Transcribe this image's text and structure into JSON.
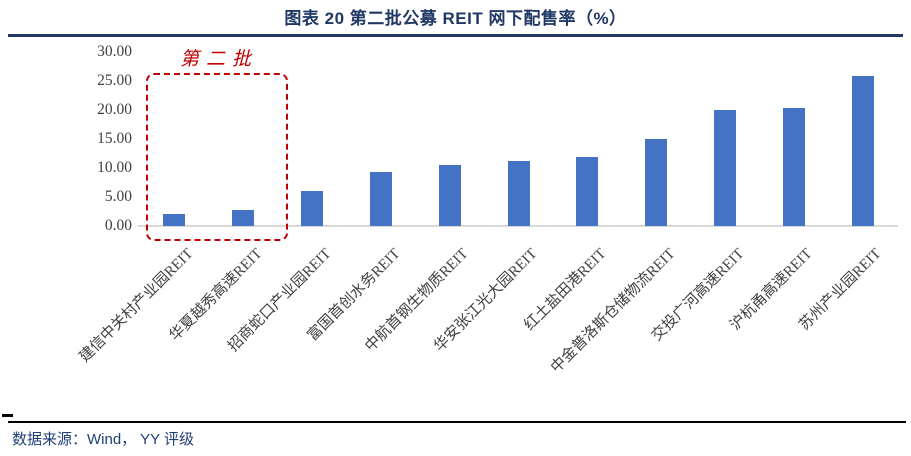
{
  "header": {
    "title": "图表 20 第二批公募 REIT 网下配售率（%）"
  },
  "annotation": {
    "label": "第二批"
  },
  "footer": {
    "source": "数据来源：Wind， YY 评级"
  },
  "colors": {
    "bar_blue": "#4472C4",
    "title_navy": "#1F3864",
    "annotation_red": "#C00000",
    "axis_line_gray": "#D9D9D9",
    "tick_text_gray": "#404040",
    "footer_text_blue": "#1F3E79"
  },
  "chart_data": {
    "type": "bar",
    "title": "图表 20 第二批公募 REIT 网下配售率（%）",
    "categories": [
      "建信中关村产业园REIT",
      "华夏越秀高速REIT",
      "招商蛇口产业园REIT",
      "富国首创水务REIT",
      "中航首钢生物质REIT",
      "华安张江光大园REIT",
      "红土盐田港REIT",
      "中金普洛斯仓储物流REIT",
      "交投广河高速REIT",
      "沪杭甬高速REIT",
      "苏州产业园REIT"
    ],
    "values": [
      2.0,
      2.8,
      6.0,
      9.3,
      10.6,
      11.2,
      11.9,
      15.0,
      20.0,
      20.4,
      25.9
    ],
    "xlabel": "",
    "ylabel": "",
    "ylim": [
      0,
      30
    ],
    "yticks": [
      0,
      5,
      10,
      15,
      20,
      25,
      30
    ],
    "ytick_labels": [
      "0.00",
      "5.00",
      "10.00",
      "15.00",
      "20.00",
      "25.00",
      "30.00"
    ],
    "grid": false,
    "legend": null,
    "bar_color": "#4472C4",
    "annotation": {
      "text": "第二批",
      "style": "red-dashed-box",
      "covers_categories": [
        "建信中关村产业园REIT",
        "华夏越秀高速REIT"
      ]
    }
  }
}
